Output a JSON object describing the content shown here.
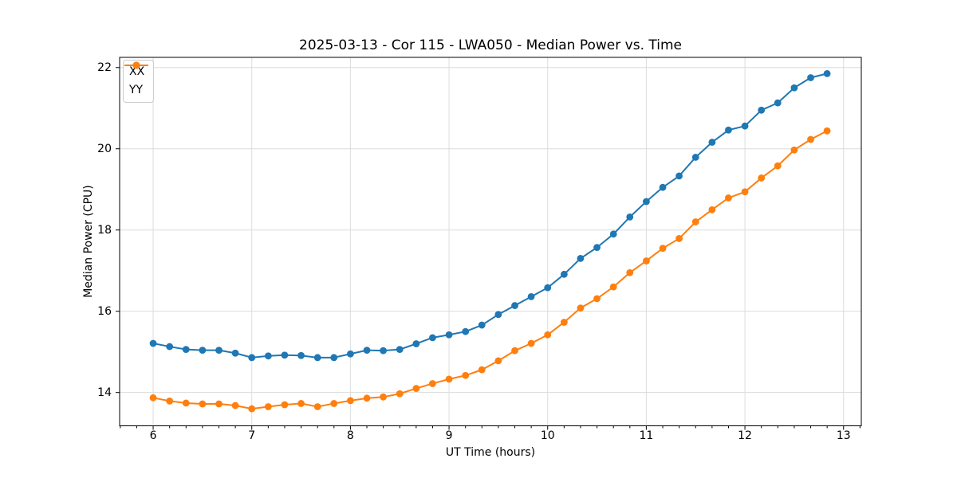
{
  "chart_data": {
    "type": "line",
    "title": "2025-03-13 - Cor 115 - LWA050 - Median Power vs. Time",
    "xlabel": "UT Time (hours)",
    "ylabel": "Median Power (CPU)",
    "xlim": [
      5.66,
      13.18
    ],
    "ylim": [
      13.18,
      22.25
    ],
    "xticks": [
      6,
      7,
      8,
      9,
      10,
      11,
      12,
      13
    ],
    "yticks": [
      14,
      16,
      18,
      20,
      22
    ],
    "x_minor_tick_step": 0.16667,
    "grid": true,
    "legend_position": "upper-left",
    "grid_color": "#dcdcdc",
    "x": [
      6.0,
      6.167,
      6.333,
      6.5,
      6.667,
      6.833,
      7.0,
      7.167,
      7.333,
      7.5,
      7.667,
      7.833,
      8.0,
      8.167,
      8.333,
      8.5,
      8.667,
      8.833,
      9.0,
      9.167,
      9.333,
      9.5,
      9.667,
      9.833,
      10.0,
      10.167,
      10.333,
      10.5,
      10.667,
      10.833,
      11.0,
      11.167,
      11.333,
      11.5,
      11.667,
      11.833,
      12.0,
      12.167,
      12.333,
      12.5,
      12.667,
      12.833
    ],
    "series": [
      {
        "name": "XX",
        "color": "#1f77b4",
        "values": [
          15.21,
          15.13,
          15.06,
          15.04,
          15.04,
          14.97,
          14.86,
          14.9,
          14.92,
          14.91,
          14.86,
          14.86,
          14.95,
          15.04,
          15.03,
          15.06,
          15.2,
          15.35,
          15.42,
          15.5,
          15.66,
          15.92,
          16.14,
          16.36,
          16.58,
          16.91,
          17.3,
          17.57,
          17.9,
          18.32,
          18.7,
          19.05,
          19.33,
          19.79,
          20.16,
          20.46,
          20.56,
          20.95,
          21.13,
          21.5,
          21.75,
          21.85
        ]
      },
      {
        "name": "YY",
        "color": "#ff7f0e",
        "values": [
          13.87,
          13.79,
          13.74,
          13.72,
          13.72,
          13.68,
          13.6,
          13.65,
          13.7,
          13.73,
          13.65,
          13.73,
          13.8,
          13.86,
          13.89,
          13.97,
          14.1,
          14.22,
          14.33,
          14.42,
          14.56,
          14.78,
          15.03,
          15.21,
          15.42,
          15.73,
          16.08,
          16.31,
          16.6,
          16.95,
          17.24,
          17.55,
          17.79,
          18.2,
          18.5,
          18.79,
          18.94,
          19.28,
          19.58,
          19.97,
          20.23,
          20.44
        ]
      }
    ]
  }
}
